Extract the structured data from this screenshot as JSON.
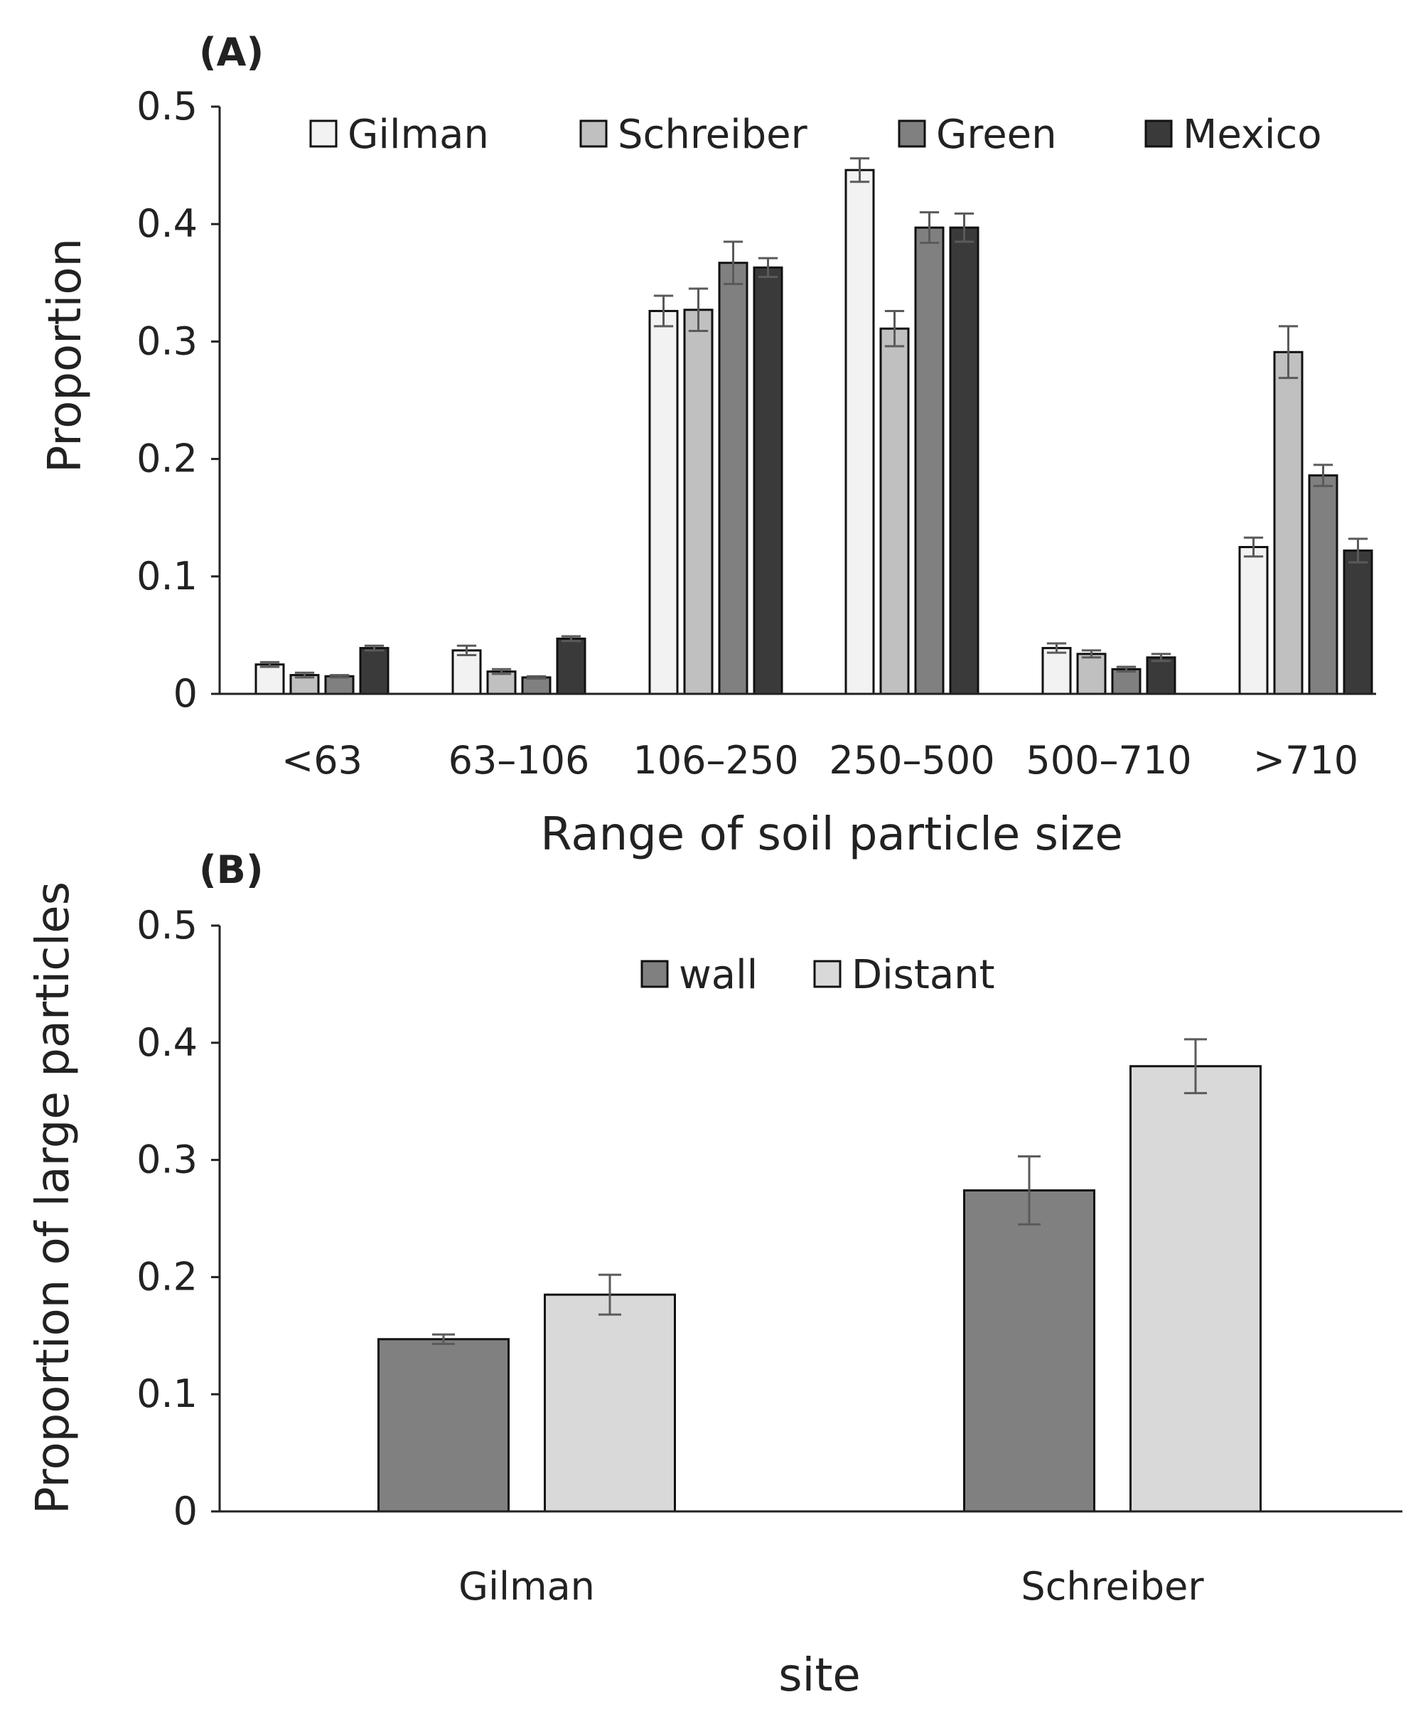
{
  "chart_data": [
    {
      "panel": "(A)",
      "type": "bar",
      "xlabel": "Range of soil particle size",
      "ylabel": "Proportion",
      "ylim": [
        0,
        0.5
      ],
      "yticks": [
        "0",
        "0.1",
        "0.2",
        "0.3",
        "0.4",
        "0.5"
      ],
      "categories": [
        "<63",
        "63–106",
        "106–250",
        "250–500",
        "500–710",
        ">710"
      ],
      "legend_position": "top",
      "series": [
        {
          "name": "Gilman",
          "color": "#f2f2f2",
          "values": [
            0.025,
            0.037,
            0.326,
            0.446,
            0.039,
            0.125
          ],
          "errors": [
            0.002,
            0.004,
            0.013,
            0.01,
            0.004,
            0.008
          ]
        },
        {
          "name": "Schreiber",
          "color": "#c0c0c0",
          "values": [
            0.016,
            0.019,
            0.327,
            0.311,
            0.034,
            0.291
          ],
          "errors": [
            0.002,
            0.002,
            0.018,
            0.015,
            0.003,
            0.022
          ]
        },
        {
          "name": "Green",
          "color": "#808080",
          "values": [
            0.015,
            0.014,
            0.367,
            0.397,
            0.021,
            0.186
          ],
          "errors": [
            0.001,
            0.001,
            0.018,
            0.013,
            0.002,
            0.009
          ]
        },
        {
          "name": "Mexico",
          "color": "#3a3a3a",
          "values": [
            0.039,
            0.047,
            0.363,
            0.397,
            0.031,
            0.122
          ],
          "errors": [
            0.002,
            0.002,
            0.008,
            0.012,
            0.003,
            0.01
          ]
        }
      ]
    },
    {
      "panel": "(B)",
      "type": "bar",
      "xlabel": "site",
      "ylabel": "Proportion of large particles",
      "ylim": [
        0,
        0.5
      ],
      "yticks": [
        "0",
        "0.1",
        "0.2",
        "0.3",
        "0.4",
        "0.5"
      ],
      "categories": [
        "Gilman",
        "Schreiber"
      ],
      "legend_position": "top",
      "series": [
        {
          "name": "wall",
          "color": "#808080",
          "values": [
            0.147,
            0.274
          ],
          "errors": [
            0.004,
            0.029
          ]
        },
        {
          "name": "Distant",
          "color": "#d9d9d9",
          "values": [
            0.185,
            0.38
          ],
          "errors": [
            0.017,
            0.023
          ]
        }
      ]
    }
  ]
}
